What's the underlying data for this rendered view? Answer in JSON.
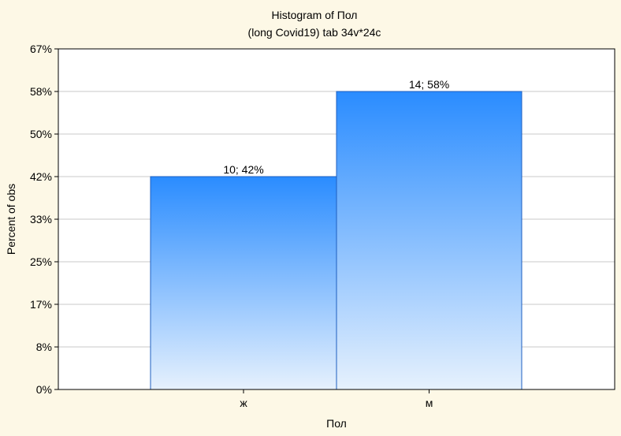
{
  "chart_data": {
    "type": "bar",
    "title": "Histogram of Пол",
    "subtitle": "(long Covid19) tab 34v*24c",
    "xlabel": "Пол",
    "ylabel": "Percent of obs",
    "categories": [
      "ж",
      "м"
    ],
    "counts": [
      10,
      14
    ],
    "values": [
      41.67,
      58.33
    ],
    "data_labels": [
      "10; 42%",
      "14; 58%"
    ],
    "yticks": [
      0,
      8.33,
      16.67,
      25,
      33.33,
      41.67,
      50,
      58.33,
      66.67
    ],
    "ytick_labels": [
      "0%",
      "8%",
      "17%",
      "25%",
      "33%",
      "42%",
      "50%",
      "58%",
      "67%"
    ],
    "ylim": [
      0,
      66.67
    ],
    "grid": true,
    "colors": {
      "background": "#fdf8e6",
      "plot_background": "#ffffff",
      "bar_top": "#2a8cff",
      "bar_bottom": "#e6f1fd",
      "bar_stroke": "#1e5fc0",
      "grid": "#c8c8c8"
    }
  }
}
